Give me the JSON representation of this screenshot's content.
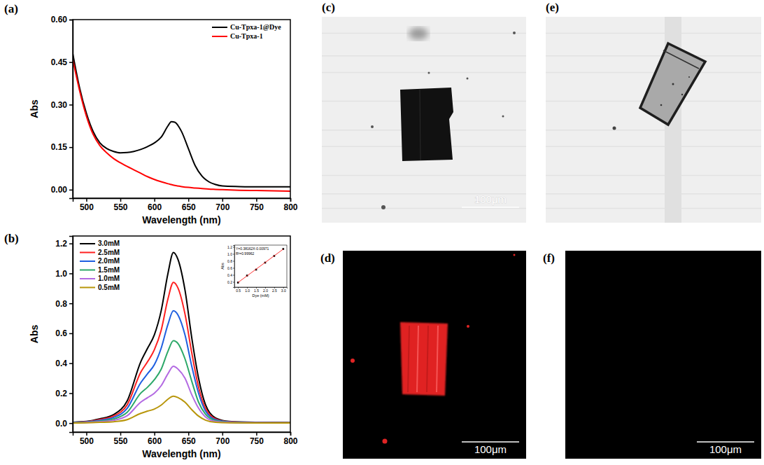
{
  "chart_data": [
    {
      "type": "line",
      "panel": "(a)",
      "x_label": "Wavelength (nm)",
      "y_label": "Abs",
      "x": [
        480,
        490,
        500,
        510,
        520,
        530,
        540,
        550,
        560,
        570,
        580,
        590,
        600,
        610,
        620,
        625,
        630,
        640,
        650,
        660,
        670,
        680,
        690,
        700,
        725,
        750,
        775,
        800
      ],
      "series": [
        {
          "name": "Cu-Tpxa-1@Dye",
          "color": "#000000",
          "line_style": "solid",
          "values": [
            0.48,
            0.36,
            0.27,
            0.205,
            0.165,
            0.145,
            0.135,
            0.13,
            0.131,
            0.135,
            0.142,
            0.152,
            0.165,
            0.185,
            0.225,
            0.24,
            0.238,
            0.205,
            0.145,
            0.085,
            0.048,
            0.028,
            0.018,
            0.013,
            0.011,
            0.01,
            0.01,
            0.01
          ]
        },
        {
          "name": "Cu-Tpxa-1",
          "color": "#ff0000",
          "line_style": "solid",
          "values": [
            0.46,
            0.35,
            0.26,
            0.195,
            0.155,
            0.13,
            0.11,
            0.095,
            0.082,
            0.07,
            0.058,
            0.046,
            0.036,
            0.028,
            0.021,
            0.018,
            0.015,
            0.011,
            0.008,
            0.006,
            0.004,
            0.002,
            0.001,
            0,
            -0.002,
            -0.003,
            -0.004,
            -0.005
          ]
        }
      ],
      "xlim": [
        480,
        800
      ],
      "xticks": [
        500,
        550,
        600,
        650,
        700,
        750,
        800
      ],
      "ylim": [
        -0.03,
        0.6
      ],
      "yticks": [
        {
          "value": 0,
          "label": "0.00"
        },
        0.15,
        {
          "value": 0.3,
          "label": "0.30"
        },
        0.45,
        {
          "value": 0.6,
          "label": "0.60"
        }
      ],
      "legend": "top-right"
    },
    {
      "type": "line",
      "panel": "(b)",
      "x_label": "Wavelength (nm)",
      "y_label": "Abs",
      "x": [
        480,
        500,
        520,
        540,
        560,
        580,
        590,
        600,
        610,
        620,
        628,
        635,
        645,
        655,
        665,
        675,
        690,
        710,
        750,
        800
      ],
      "series": [
        {
          "name": "3.0mM",
          "color": "#000000",
          "line_style": "solid",
          "values": [
            0.006,
            0.011,
            0.029,
            0.057,
            0.148,
            0.41,
            0.5,
            0.59,
            0.75,
            1.0,
            1.14,
            1.09,
            0.89,
            0.57,
            0.3,
            0.125,
            0.034,
            0.011,
            0.005,
            0.003
          ]
        },
        {
          "name": "2.5mM",
          "color": "#ff2020",
          "line_style": "solid",
          "values": [
            0.005,
            0.009,
            0.024,
            0.047,
            0.122,
            0.34,
            0.41,
            0.49,
            0.62,
            0.83,
            0.94,
            0.9,
            0.73,
            0.47,
            0.24,
            0.1,
            0.028,
            0.009,
            0.004,
            0.003
          ]
        },
        {
          "name": "2.0mM",
          "color": "#1f5fe0",
          "line_style": "solid",
          "values": [
            0.004,
            0.008,
            0.019,
            0.038,
            0.098,
            0.27,
            0.33,
            0.39,
            0.5,
            0.66,
            0.75,
            0.72,
            0.59,
            0.38,
            0.2,
            0.083,
            0.023,
            0.008,
            0.003,
            0.002
          ]
        },
        {
          "name": "1.5mM",
          "color": "#2ca868",
          "line_style": "solid",
          "values": [
            0.003,
            0.006,
            0.014,
            0.028,
            0.072,
            0.2,
            0.24,
            0.29,
            0.36,
            0.48,
            0.55,
            0.53,
            0.43,
            0.28,
            0.14,
            0.061,
            0.017,
            0.006,
            0.002,
            0.002
          ]
        },
        {
          "name": "1.0mM",
          "color": "#b36ae2",
          "line_style": "solid",
          "values": [
            0.002,
            0.004,
            0.01,
            0.019,
            0.049,
            0.14,
            0.17,
            0.2,
            0.25,
            0.33,
            0.38,
            0.36,
            0.3,
            0.19,
            0.1,
            0.042,
            0.011,
            0.004,
            0.002,
            0.001
          ]
        },
        {
          "name": "0.5mM",
          "color": "#b8960b",
          "line_style": "solid",
          "values": [
            0.001,
            0.002,
            0.005,
            0.009,
            0.023,
            0.065,
            0.08,
            0.094,
            0.12,
            0.16,
            0.18,
            0.17,
            0.14,
            0.09,
            0.047,
            0.02,
            0.005,
            0.002,
            0.001,
            0.001
          ]
        }
      ],
      "xlim": [
        480,
        800
      ],
      "xticks": [
        500,
        550,
        600,
        650,
        700,
        750,
        800
      ],
      "ylim": [
        -0.06,
        1.25
      ],
      "yticks": [
        {
          "value": 0,
          "label": "0.0"
        },
        0.2,
        0.4,
        0.6,
        0.8,
        {
          "value": 1,
          "label": "1.0"
        },
        1.2
      ],
      "legend": "top-left",
      "inset": {
        "type": "scatter",
        "x_label": "Dye (mM)",
        "y_label": "Abs",
        "annotations": [
          "Y=0.38162X-0.00971",
          "R²=0.99962"
        ],
        "x": [
          0.5,
          1.0,
          1.5,
          2.0,
          2.5,
          3.0
        ],
        "series": [
          {
            "type": "scatter",
            "marker": "square",
            "color": "#000000",
            "values": [
              0.18,
              0.38,
              0.55,
              0.75,
              0.94,
              1.14
            ]
          },
          {
            "type": "line",
            "line_style": "solid",
            "color": "#ff0000",
            "x": [
              0.5,
              3.0
            ],
            "values": [
              0.181,
              1.135
            ]
          }
        ],
        "xlim": [
          0.3,
          3.2
        ],
        "xticks": [
          0.5,
          {
            "value": 1,
            "label": "1.0"
          },
          1.5,
          {
            "value": 2,
            "label": "2.0"
          },
          2.5,
          {
            "value": 3,
            "label": "3.0"
          }
        ],
        "ylim": [
          0.05,
          1.25
        ],
        "yticks": [
          0.2,
          0.4,
          0.6,
          0.8,
          {
            "value": 1,
            "label": "1.0"
          },
          1.2
        ]
      }
    }
  ],
  "images": [
    {
      "panel": "(c)",
      "kind": "brightfield",
      "scale_bar": "100μm"
    },
    {
      "panel": "(d)",
      "kind": "fluorescence",
      "color": "#e02424",
      "scale_bar": "100μm"
    },
    {
      "panel": "(e)",
      "kind": "brightfield"
    },
    {
      "panel": "(f)",
      "kind": "fluorescence",
      "scale_bar": "100μm"
    }
  ]
}
